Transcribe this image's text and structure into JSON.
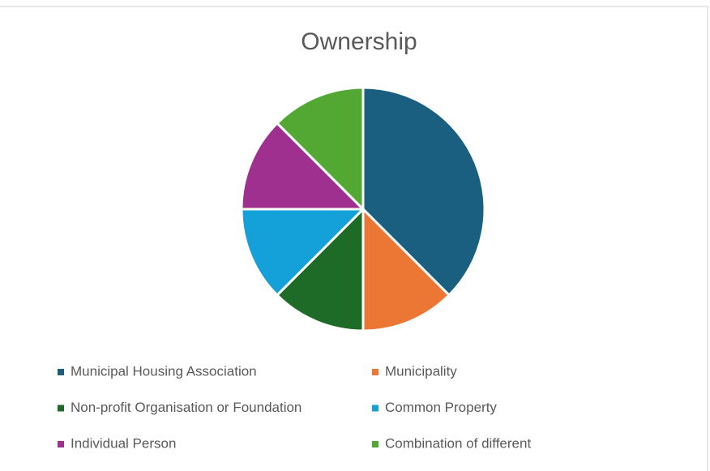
{
  "chart_data": {
    "type": "pie",
    "title": "Ownership",
    "categories": [
      "Municipal Housing Association",
      "Municipality",
      "Non-profit Organisation or Foundation",
      "Common Property",
      "Individual Person",
      "Combination of different"
    ],
    "values": [
      37.5,
      12.5,
      12.5,
      12.5,
      12.5,
      12.5
    ],
    "colors": [
      "#1a5e80",
      "#ec7634",
      "#1d6b26",
      "#14a0d8",
      "#a0308f",
      "#52a832"
    ],
    "legend": "bottom"
  }
}
